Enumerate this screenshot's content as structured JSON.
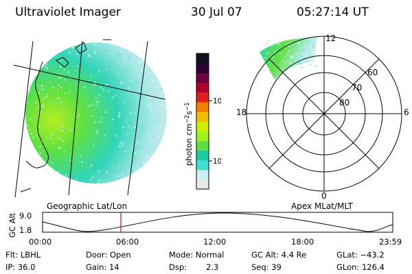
{
  "header": {
    "title": "Ultraviolet Imager",
    "date": "30 Jul 07",
    "time": "05:27:14 UT"
  },
  "colorbar": {
    "label_main": "photon cm",
    "label_exp1": "−2",
    "label_mid": "s",
    "label_exp2": "−1",
    "ticks": [
      "100",
      "10"
    ],
    "colors": [
      "#e8e8e8",
      "#c8f0f0",
      "#40e0d0",
      "#20c8a0",
      "#60e040",
      "#a0f020",
      "#d0f000",
      "#f0c000",
      "#f08000",
      "#e02020",
      "#b00030",
      "#700040",
      "#300030",
      "#101020"
    ]
  },
  "maps": {
    "geo_label": "Geographic Lat/Lon",
    "polar_label": "Apex MLat/MLT",
    "polar_top": "12",
    "polar_left": "18",
    "polar_right": "6",
    "polar_bottom": "0",
    "polar_lat_labels": [
      "60",
      "70",
      "80"
    ]
  },
  "orbit": {
    "axis_label": "GC Alt",
    "y_ticks": [
      "9.0",
      "1.8"
    ],
    "x_ticks": [
      "00:00",
      "06:00",
      "12:00",
      "18:00",
      "23:59"
    ],
    "marker_color": "#e00000"
  },
  "info": {
    "flt": "Flt: LBHL",
    "ip": "IP: 36.0",
    "door": "Door: Open",
    "gain": "Gain: 14",
    "mode": "Mode: Normal",
    "dsp_label": "Dsp:",
    "dsp_value": "2.3",
    "gcalt": "GC Alt: 4.4 Re",
    "seq": "Seq: 39",
    "glat": "GLat: −43.2",
    "glon": "GLon: 126.4"
  }
}
